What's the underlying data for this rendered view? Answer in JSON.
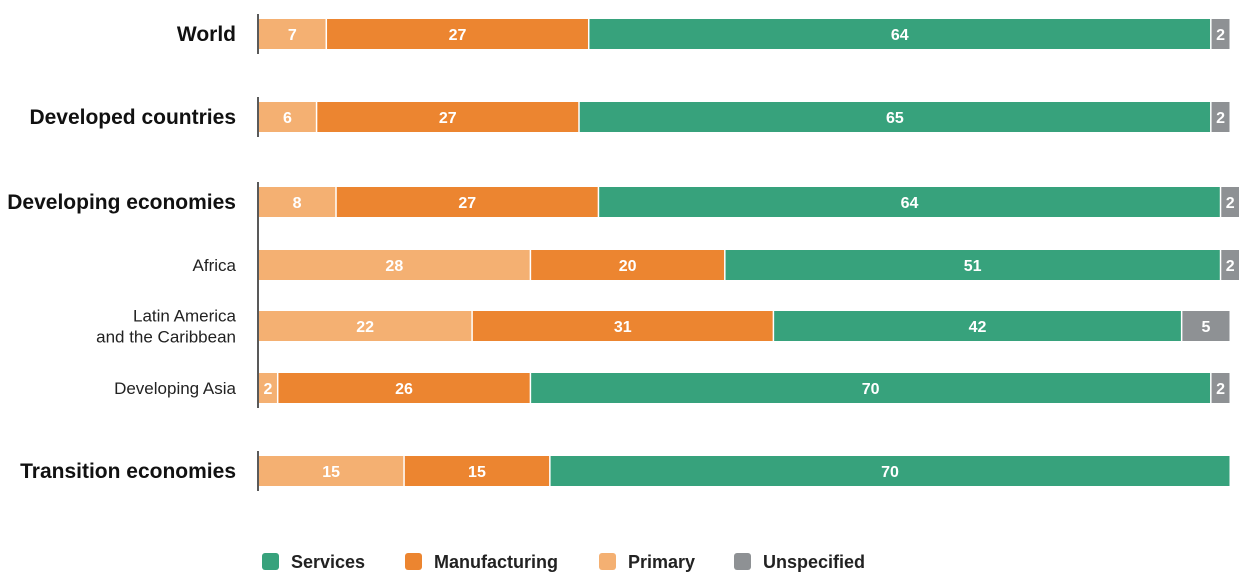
{
  "chart_data": {
    "type": "bar",
    "orientation": "horizontal",
    "stacked": true,
    "unit": "percent",
    "title": "",
    "xlabel": "",
    "ylabel": "",
    "xlim": [
      0,
      100
    ],
    "grid": false,
    "legend_position": "bottom",
    "categories": [
      {
        "label": "World",
        "bold": true
      },
      {
        "label": "Developed countries",
        "bold": true
      },
      {
        "label": "Developing economies",
        "bold": true
      },
      {
        "label": "Africa",
        "bold": false
      },
      {
        "label": [
          "Latin America",
          "and the Caribbean"
        ],
        "bold": false
      },
      {
        "label": "Developing Asia",
        "bold": false
      },
      {
        "label": "Transition economies",
        "bold": true
      }
    ],
    "series": [
      {
        "name": "Primary",
        "color": "#F4B072",
        "values": [
          7,
          6,
          8,
          28,
          22,
          2,
          15
        ]
      },
      {
        "name": "Manufacturing",
        "color": "#EC8530",
        "values": [
          27,
          27,
          27,
          20,
          31,
          26,
          15
        ]
      },
      {
        "name": "Services",
        "color": "#37A27C",
        "values": [
          64,
          65,
          64,
          51,
          42,
          70,
          70
        ]
      },
      {
        "name": "Unspecified",
        "color": "#8E9194",
        "values": [
          2,
          2,
          2,
          2,
          5,
          2,
          null
        ]
      }
    ],
    "legend_order": [
      "Services",
      "Manufacturing",
      "Primary",
      "Unspecified"
    ]
  }
}
